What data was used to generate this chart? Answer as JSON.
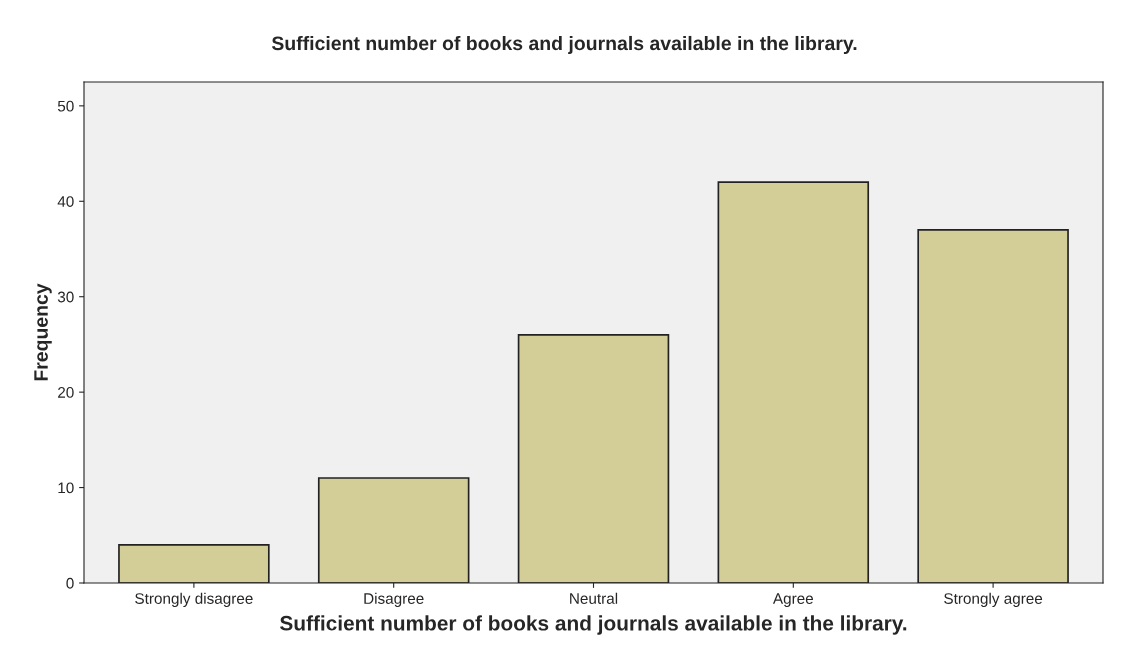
{
  "chart_data": {
    "type": "bar",
    "title": "Sufficient number of books and journals available in the library.",
    "xlabel": "Sufficient number of books and journals available in the library.",
    "ylabel": "Frequency",
    "categories": [
      "Strongly disagree",
      "Disagree",
      "Neutral",
      "Agree",
      "Strongly agree"
    ],
    "values": [
      4,
      11,
      26,
      42,
      37
    ],
    "color": "#d3ce97",
    "ylim": [
      0,
      52.5
    ],
    "yticks": [
      0,
      10,
      20,
      30,
      40,
      50
    ],
    "grid": false,
    "legend": false
  }
}
